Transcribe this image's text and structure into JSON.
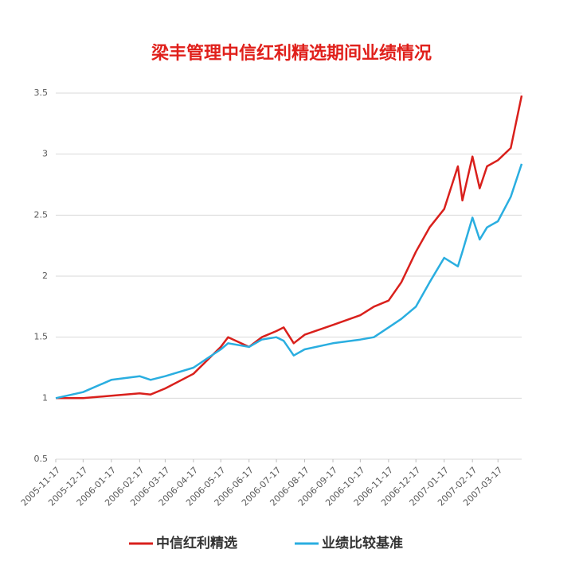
{
  "chart_data": {
    "type": "line",
    "title": "梁丰管理中信红利精选期间业绩情况",
    "x": [
      "2005-11-17",
      "2005-12-17",
      "2006-01-17",
      "2006-02-17",
      "2006-03-01",
      "2006-03-17",
      "2006-04-17",
      "2006-05-17",
      "2006-05-25",
      "2006-06-17",
      "2006-07-01",
      "2006-07-17",
      "2006-07-25",
      "2006-08-05",
      "2006-08-17",
      "2006-09-17",
      "2006-10-17",
      "2006-11-01",
      "2006-11-17",
      "2006-12-01",
      "2006-12-17",
      "2007-01-01",
      "2007-01-17",
      "2007-02-01",
      "2007-02-06",
      "2007-02-17",
      "2007-02-25",
      "2007-03-05",
      "2007-03-17",
      "2007-03-31",
      "2007-04-12"
    ],
    "series": [
      {
        "name": "中信红利精选",
        "color": "#d9201c",
        "values": [
          1.0,
          1.0,
          1.02,
          1.04,
          1.03,
          1.08,
          1.2,
          1.42,
          1.5,
          1.42,
          1.5,
          1.55,
          1.58,
          1.45,
          1.52,
          1.6,
          1.68,
          1.75,
          1.8,
          1.95,
          2.2,
          2.4,
          2.55,
          2.9,
          2.62,
          2.98,
          2.72,
          2.9,
          2.95,
          3.05,
          3.48
        ]
      },
      {
        "name": "业绩比较基准",
        "color": "#2aaee0",
        "values": [
          1.0,
          1.05,
          1.15,
          1.18,
          1.15,
          1.18,
          1.25,
          1.4,
          1.45,
          1.42,
          1.48,
          1.5,
          1.47,
          1.35,
          1.4,
          1.45,
          1.48,
          1.5,
          1.58,
          1.65,
          1.75,
          1.95,
          2.15,
          2.08,
          2.2,
          2.48,
          2.3,
          2.4,
          2.45,
          2.65,
          2.92
        ]
      }
    ],
    "xlim": [
      "2005-11-17",
      "2007-04-12"
    ],
    "xticks": [
      "2005-11-17",
      "2005-12-17",
      "2006-01-17",
      "2006-02-17",
      "2006-03-17",
      "2006-04-17",
      "2006-05-17",
      "2006-06-17",
      "2006-07-17",
      "2006-08-17",
      "2006-09-17",
      "2006-10-17",
      "2006-11-17",
      "2006-12-17",
      "2007-01-17",
      "2007-02-17",
      "2007-03-17"
    ],
    "ylim": [
      0.5,
      3.5
    ],
    "yticks": [
      0.5,
      1,
      1.5,
      2,
      2.5,
      3,
      3.5
    ],
    "grid": true
  }
}
